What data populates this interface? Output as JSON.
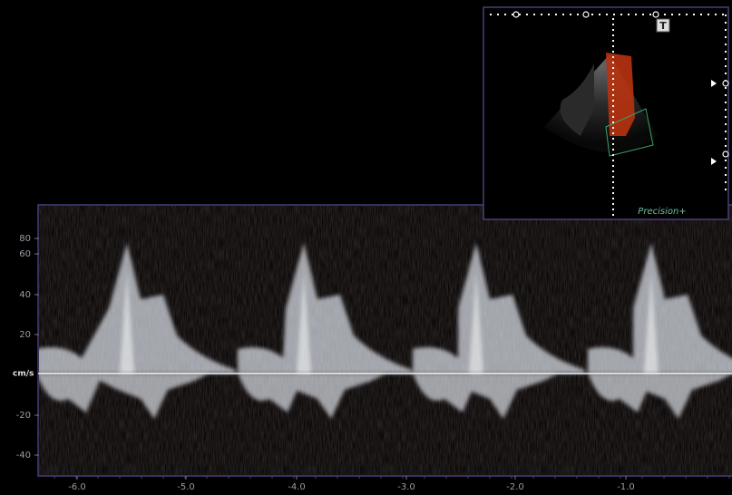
{
  "doppler": {
    "unit_label": "cm/s",
    "velocity_ticks": [
      "80",
      "60",
      "40",
      "20",
      "-20",
      "-40"
    ],
    "time_ticks": [
      "-6.0",
      "-5.0",
      "-4.0",
      "-3.0",
      "-2.0",
      "-1.0"
    ]
  },
  "inset": {
    "badge": "T",
    "label": "Precision+"
  }
}
